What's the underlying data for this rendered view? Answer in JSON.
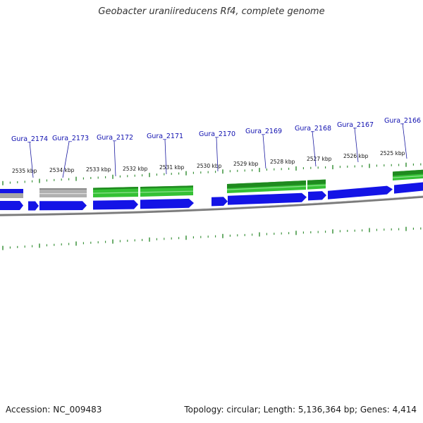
{
  "title": "Geobacter uraniireducens Rf4, complete genome",
  "accession_text": "Accession: NC_009483",
  "summary_text": "Topology: circular; Length: 5,136,364 bp; Genes: 4,414",
  "colors": {
    "forward_cds": "#1414e6",
    "reverse_cds_green": "#35c135",
    "reverse_cds_dark_green": "#1f8a1f",
    "reverse_cds_gray": "#a6a6a6",
    "tick_green": "#2e8b2e",
    "backbone_gray": "#808080",
    "label_blue": "#1010b0"
  },
  "kbp_labels": [
    "2535 kbp",
    "2534 kbp",
    "2533 kbp",
    "2532 kbp",
    "2531 kbp",
    "2530 kbp",
    "2529 kbp",
    "2528 kbp",
    "2527 kbp",
    "2526 kbp",
    "2525 kbp"
  ],
  "gene_labels": [
    "Gura_2174",
    "Gura_2173",
    "Gura_2172",
    "Gura_2171",
    "Gura_2170",
    "Gura_2169",
    "Gura_2168",
    "Gura_2167",
    "Gura_2166"
  ]
}
